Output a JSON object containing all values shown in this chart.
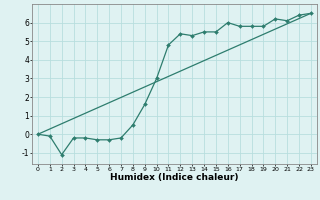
{
  "xlabel": "Humidex (Indice chaleur)",
  "ylabel": "",
  "bg_color": "#dff2f2",
  "line_color": "#2e7d6e",
  "grid_color": "#b8dede",
  "xlim": [
    -0.5,
    23.5
  ],
  "ylim": [
    -1.6,
    7.0
  ],
  "yticks": [
    -1,
    0,
    1,
    2,
    3,
    4,
    5,
    6
  ],
  "xticks": [
    0,
    1,
    2,
    3,
    4,
    5,
    6,
    7,
    8,
    9,
    10,
    11,
    12,
    13,
    14,
    15,
    16,
    17,
    18,
    19,
    20,
    21,
    22,
    23
  ],
  "curve1_x": [
    0,
    1,
    2,
    3,
    4,
    5,
    6,
    7,
    8,
    9,
    10,
    11,
    12,
    13,
    14,
    15,
    16,
    17,
    18,
    19,
    20,
    21,
    22,
    23
  ],
  "curve1_y": [
    0.0,
    -0.1,
    -1.1,
    -0.2,
    -0.2,
    -0.3,
    -0.3,
    -0.2,
    0.5,
    1.6,
    3.0,
    4.8,
    5.4,
    5.3,
    5.5,
    5.5,
    6.0,
    5.8,
    5.8,
    5.8,
    6.2,
    6.1,
    6.4,
    6.5
  ],
  "curve2_x": [
    0,
    23
  ],
  "curve2_y": [
    0.0,
    6.5
  ]
}
